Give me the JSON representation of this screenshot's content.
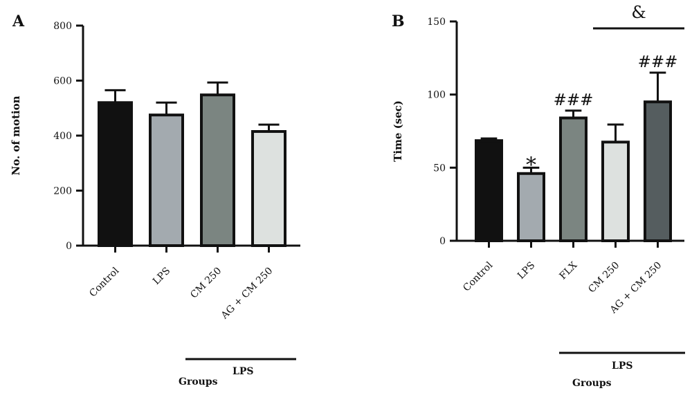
{
  "chart_data": [
    {
      "type": "bar",
      "panel_label": "A",
      "ylabel": "No. of motion",
      "xlabel": "Groups",
      "ylim": [
        0,
        800
      ],
      "yticks": [
        0,
        200,
        400,
        600,
        800
      ],
      "categories": [
        "Control",
        "LPS",
        "CM 250",
        "AG + CM 250"
      ],
      "values": [
        520,
        475,
        548,
        415
      ],
      "errors": [
        45,
        45,
        45,
        25
      ],
      "colors": [
        "#111111",
        "#a3aaaf",
        "#7b8581",
        "#dde1df"
      ],
      "group_bracket": {
        "label": "LPS",
        "from": "CM 250",
        "to": "AG + CM 250"
      },
      "annotations": []
    },
    {
      "type": "bar",
      "panel_label": "B",
      "ylabel": "Time (sec)",
      "xlabel": "Groups",
      "ylim": [
        0,
        150
      ],
      "yticks": [
        0,
        50,
        100,
        150
      ],
      "categories": [
        "Control",
        "LPS",
        "FLX",
        "CM 250",
        "AG + CM 250"
      ],
      "values": [
        68.5,
        46,
        84,
        67.5,
        95
      ],
      "errors": [
        1.5,
        4,
        5,
        12,
        20
      ],
      "colors": [
        "#111111",
        "#a3aaaf",
        "#7b8581",
        "#dde1df",
        "#555d5f"
      ],
      "group_bracket": {
        "label": "LPS",
        "from": "FLX",
        "to": "AG + CM 250"
      },
      "annotations": [
        {
          "category": "LPS",
          "text": "*"
        },
        {
          "category": "FLX",
          "text": "###"
        },
        {
          "category": "AG + CM 250",
          "text": "###"
        }
      ],
      "comparison": {
        "text": "&",
        "from": "CM 250",
        "to": "AG + CM 250"
      }
    }
  ]
}
